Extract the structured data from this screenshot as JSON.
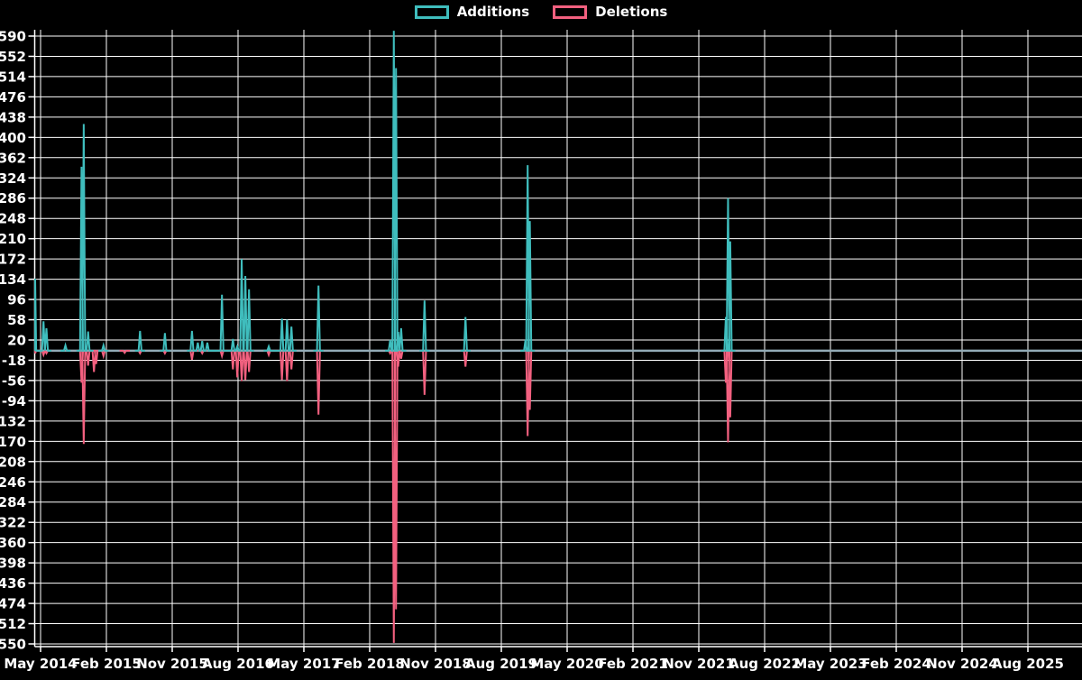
{
  "legend": {
    "items": [
      {
        "id": "additions",
        "label": "Additions",
        "color": "#3fbdbd"
      },
      {
        "id": "deletions",
        "label": "Deletions",
        "color": "#f2607f"
      }
    ]
  },
  "chart_data": {
    "type": "line",
    "title": "",
    "x_axis": {
      "tick_labels": [
        "May 2014",
        "Feb 2015",
        "Nov 2015",
        "Aug 2016",
        "May 2017",
        "Feb 2018",
        "Nov 2018",
        "Aug 2019",
        "May 2020",
        "Feb 2021",
        "Nov 2021",
        "Aug 2022",
        "May 2023",
        "Feb 2024",
        "Nov 2024",
        "Aug 2025"
      ],
      "months_per_tick": 9
    },
    "y_axis": {
      "min": -550,
      "max": 590,
      "step": 38,
      "ticks": [
        590,
        552,
        514,
        476,
        438,
        400,
        362,
        324,
        286,
        248,
        210,
        172,
        134,
        96,
        58,
        20,
        -18,
        -56,
        -94,
        -132,
        -170,
        -208,
        -246,
        -284,
        -322,
        -360,
        -398,
        -436,
        -474,
        -512,
        -550
      ]
    },
    "grid": true,
    "legend_position": "top-center",
    "colors": {
      "background": "#000000",
      "grid": "#ffffff",
      "text": "#ffffff",
      "additions": "#3fbdbd",
      "deletions": "#f2607f",
      "zero_baseline": "#92aab6"
    },
    "note": "x of each point = months after May 2014 (estimated); series value is 0 everywhere between listed weekly spike points",
    "series": [
      {
        "name": "Additions",
        "points": [
          [
            -0.8,
            135
          ],
          [
            0.4,
            55
          ],
          [
            0.8,
            42
          ],
          [
            3.4,
            10
          ],
          [
            5.6,
            345
          ],
          [
            5.9,
            425
          ],
          [
            6.5,
            36
          ],
          [
            8.6,
            10
          ],
          [
            13.6,
            37
          ],
          [
            17.0,
            33
          ],
          [
            20.7,
            37
          ],
          [
            21.5,
            15
          ],
          [
            22.1,
            18
          ],
          [
            22.8,
            15
          ],
          [
            24.8,
            105
          ],
          [
            26.3,
            22
          ],
          [
            26.9,
            8
          ],
          [
            27.5,
            172
          ],
          [
            28.0,
            140
          ],
          [
            28.5,
            115
          ],
          [
            31.2,
            8
          ],
          [
            33.0,
            60
          ],
          [
            33.7,
            58
          ],
          [
            34.3,
            45
          ],
          [
            38.0,
            122
          ],
          [
            47.8,
            20
          ],
          [
            48.3,
            600
          ],
          [
            48.6,
            530
          ],
          [
            48.9,
            35
          ],
          [
            49.3,
            42
          ],
          [
            52.5,
            94
          ],
          [
            58.1,
            63
          ],
          [
            66.3,
            20
          ],
          [
            66.6,
            348
          ],
          [
            66.9,
            243
          ],
          [
            93.7,
            63
          ],
          [
            94.0,
            286
          ],
          [
            94.3,
            205
          ]
        ]
      },
      {
        "name": "Deletions",
        "points": [
          [
            -0.8,
            -5
          ],
          [
            0.4,
            -8
          ],
          [
            0.8,
            -5
          ],
          [
            5.6,
            -60
          ],
          [
            5.9,
            -175
          ],
          [
            6.5,
            -28
          ],
          [
            7.3,
            -40
          ],
          [
            7.6,
            -25
          ],
          [
            8.6,
            -10
          ],
          [
            11.5,
            -4
          ],
          [
            13.6,
            -5
          ],
          [
            17.0,
            -5
          ],
          [
            20.7,
            -17
          ],
          [
            22.1,
            -5
          ],
          [
            24.8,
            -10
          ],
          [
            26.3,
            -35
          ],
          [
            26.9,
            -50
          ],
          [
            27.5,
            -57
          ],
          [
            28.0,
            -55
          ],
          [
            28.5,
            -40
          ],
          [
            31.2,
            -8
          ],
          [
            33.0,
            -55
          ],
          [
            33.7,
            -57
          ],
          [
            34.3,
            -35
          ],
          [
            38.0,
            -120
          ],
          [
            47.8,
            -5
          ],
          [
            48.3,
            -548
          ],
          [
            48.6,
            -485
          ],
          [
            48.9,
            -30
          ],
          [
            49.3,
            -15
          ],
          [
            52.5,
            -83
          ],
          [
            58.1,
            -30
          ],
          [
            66.6,
            -160
          ],
          [
            66.9,
            -111
          ],
          [
            93.7,
            -60
          ],
          [
            94.0,
            -172
          ],
          [
            94.3,
            -125
          ]
        ]
      }
    ]
  }
}
